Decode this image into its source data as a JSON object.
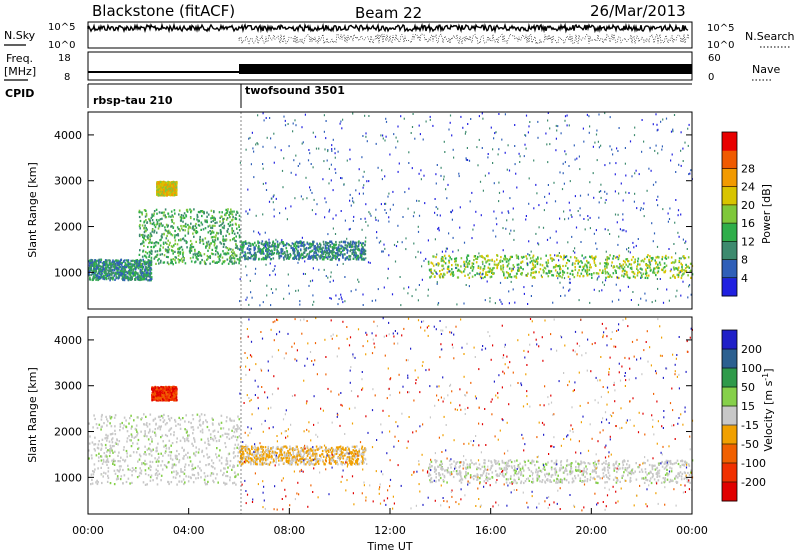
{
  "header": {
    "station": "Blackstone (fitACF)",
    "beam": "Beam 22",
    "date": "26/Mar/2013"
  },
  "top_panels": {
    "nsky_label": "N.Sky",
    "nsky_ticks": [
      "10^5",
      "10^0"
    ],
    "nsearch_label": "N.Search",
    "nsearch_ticks": [
      "10^5",
      "10^0"
    ],
    "freq_label_line1": "Freq.",
    "freq_label_line2": "[MHz]",
    "freq_ticks": [
      "18",
      "8"
    ],
    "nave_label": "Nave",
    "nave_ticks": [
      "60",
      "0"
    ],
    "cpid_label": "CPID",
    "cpid_segments": [
      {
        "name": "rbsp-tau 210",
        "start_hour": 0
      },
      {
        "name": "twofsound 3501",
        "start_hour": 6
      }
    ]
  },
  "chart_data": [
    {
      "type": "heatmap",
      "title": "",
      "xlabel": "",
      "ylabel": "Slant Range [km]",
      "xlim_hours": [
        0,
        24
      ],
      "ylim": [
        200,
        4500
      ],
      "y_ticks": [
        "1000",
        "2000",
        "3000",
        "4000"
      ],
      "colorbar": {
        "label": "Power [dB]",
        "ticks": [
          "4",
          "8",
          "12",
          "16",
          "20",
          "24",
          "28"
        ],
        "colors": [
          "#2020e0",
          "#2f5fb8",
          "#3d8a6e",
          "#2fae4a",
          "#7fc83a",
          "#d8c400",
          "#f29a00",
          "#ef5a00",
          "#e80000"
        ]
      },
      "scatter_regions": [
        {
          "t0": 0.0,
          "t1": 2.5,
          "r0": 850,
          "r1": 1300,
          "value": 10
        },
        {
          "t0": 2.0,
          "t1": 6.0,
          "r0": 1200,
          "r1": 2400,
          "value": 14
        },
        {
          "t0": 2.7,
          "t1": 3.5,
          "r0": 2700,
          "r1": 3000,
          "value": 22
        },
        {
          "t0": 6.0,
          "t1": 11.0,
          "r0": 1300,
          "r1": 1700,
          "value": 12
        },
        {
          "t0": 13.5,
          "t1": 24.0,
          "r0": 900,
          "r1": 1400,
          "value": 20
        }
      ]
    },
    {
      "type": "heatmap",
      "title": "",
      "xlabel": "Time UT",
      "ylabel": "Slant Range [km]",
      "xlim_hours": [
        0,
        24
      ],
      "ylim": [
        200,
        4500
      ],
      "y_ticks": [
        "1000",
        "2000",
        "3000",
        "4000"
      ],
      "x_ticks": [
        "00:00",
        "04:00",
        "08:00",
        "12:00",
        "16:00",
        "20:00",
        "00:00"
      ],
      "colorbar": {
        "label": "Velocity [m s^-1]",
        "ticks": [
          "200",
          "100",
          "50",
          "15",
          "-15",
          "-50",
          "-100",
          "-200"
        ],
        "colors": [
          "#2020c8",
          "#2c6090",
          "#2f9a4a",
          "#86d04a",
          "#c8c8c8",
          "#f0a000",
          "#f06000",
          "#f03000",
          "#e00000"
        ]
      },
      "scatter_regions": [
        {
          "t0": 0.0,
          "t1": 6.0,
          "r0": 850,
          "r1": 2400,
          "value": 0
        },
        {
          "t0": 2.5,
          "t1": 3.5,
          "r0": 2700,
          "r1": 3000,
          "value": -80
        },
        {
          "t0": 6.0,
          "t1": 11.0,
          "r0": 1300,
          "r1": 1700,
          "value": -30
        },
        {
          "t0": 13.5,
          "t1": 24.0,
          "r0": 900,
          "r1": 1400,
          "value": 0
        }
      ]
    }
  ]
}
